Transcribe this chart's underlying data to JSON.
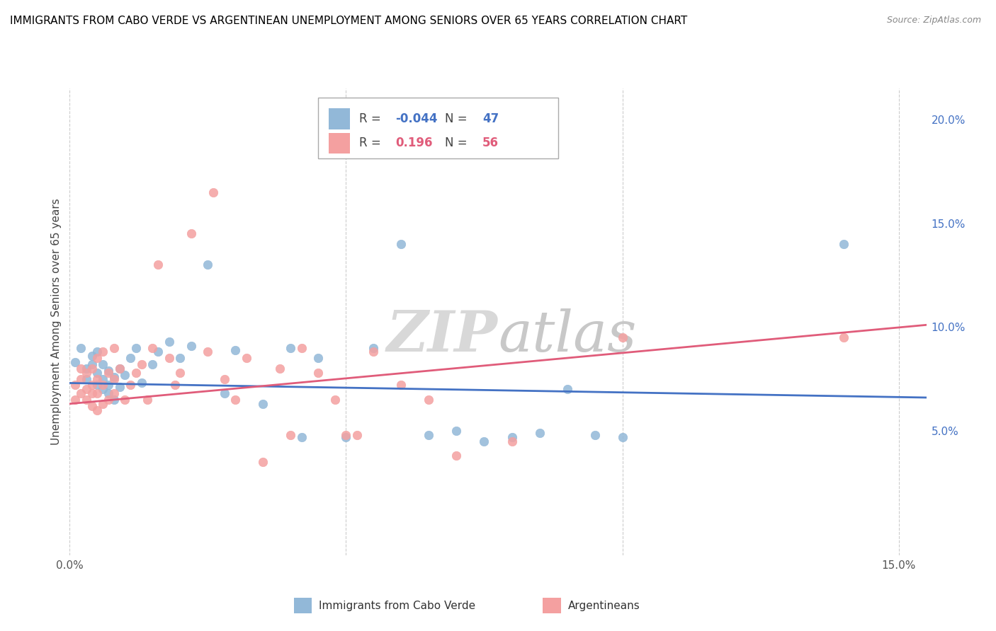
{
  "title": "IMMIGRANTS FROM CABO VERDE VS ARGENTINEAN UNEMPLOYMENT AMONG SENIORS OVER 65 YEARS CORRELATION CHART",
  "source": "Source: ZipAtlas.com",
  "ylabel": "Unemployment Among Seniors over 65 years",
  "xlim": [
    0.0,
    0.155
  ],
  "ylim": [
    -0.01,
    0.215
  ],
  "blue_color": "#92b8d8",
  "pink_color": "#f4a0a0",
  "blue_line_color": "#4472c4",
  "pink_line_color": "#e05c7a",
  "right_tick_color": "#4472c4",
  "watermark_color": "#e0e0e0",
  "blue_scatter": [
    [
      0.001,
      0.083
    ],
    [
      0.002,
      0.09
    ],
    [
      0.003,
      0.075
    ],
    [
      0.003,
      0.08
    ],
    [
      0.004,
      0.082
    ],
    [
      0.004,
      0.086
    ],
    [
      0.005,
      0.072
    ],
    [
      0.005,
      0.078
    ],
    [
      0.005,
      0.088
    ],
    [
      0.006,
      0.07
    ],
    [
      0.006,
      0.075
    ],
    [
      0.006,
      0.082
    ],
    [
      0.007,
      0.068
    ],
    [
      0.007,
      0.072
    ],
    [
      0.007,
      0.079
    ],
    [
      0.008,
      0.065
    ],
    [
      0.008,
      0.076
    ],
    [
      0.009,
      0.071
    ],
    [
      0.009,
      0.08
    ],
    [
      0.01,
      0.077
    ],
    [
      0.011,
      0.085
    ],
    [
      0.012,
      0.09
    ],
    [
      0.013,
      0.073
    ],
    [
      0.015,
      0.082
    ],
    [
      0.016,
      0.088
    ],
    [
      0.018,
      0.093
    ],
    [
      0.02,
      0.085
    ],
    [
      0.022,
      0.091
    ],
    [
      0.025,
      0.13
    ],
    [
      0.028,
      0.068
    ],
    [
      0.03,
      0.089
    ],
    [
      0.035,
      0.063
    ],
    [
      0.04,
      0.09
    ],
    [
      0.042,
      0.047
    ],
    [
      0.045,
      0.085
    ],
    [
      0.05,
      0.047
    ],
    [
      0.055,
      0.09
    ],
    [
      0.06,
      0.14
    ],
    [
      0.065,
      0.048
    ],
    [
      0.07,
      0.05
    ],
    [
      0.075,
      0.045
    ],
    [
      0.08,
      0.047
    ],
    [
      0.085,
      0.049
    ],
    [
      0.09,
      0.07
    ],
    [
      0.095,
      0.048
    ],
    [
      0.1,
      0.047
    ],
    [
      0.14,
      0.14
    ]
  ],
  "pink_scatter": [
    [
      0.001,
      0.065
    ],
    [
      0.001,
      0.072
    ],
    [
      0.002,
      0.068
    ],
    [
      0.002,
      0.075
    ],
    [
      0.002,
      0.08
    ],
    [
      0.003,
      0.065
    ],
    [
      0.003,
      0.07
    ],
    [
      0.003,
      0.078
    ],
    [
      0.004,
      0.062
    ],
    [
      0.004,
      0.068
    ],
    [
      0.004,
      0.072
    ],
    [
      0.004,
      0.08
    ],
    [
      0.005,
      0.06
    ],
    [
      0.005,
      0.068
    ],
    [
      0.005,
      0.075
    ],
    [
      0.005,
      0.085
    ],
    [
      0.006,
      0.063
    ],
    [
      0.006,
      0.072
    ],
    [
      0.006,
      0.088
    ],
    [
      0.007,
      0.065
    ],
    [
      0.007,
      0.078
    ],
    [
      0.008,
      0.068
    ],
    [
      0.008,
      0.075
    ],
    [
      0.008,
      0.09
    ],
    [
      0.009,
      0.08
    ],
    [
      0.01,
      0.065
    ],
    [
      0.011,
      0.072
    ],
    [
      0.012,
      0.078
    ],
    [
      0.013,
      0.082
    ],
    [
      0.014,
      0.065
    ],
    [
      0.015,
      0.09
    ],
    [
      0.016,
      0.13
    ],
    [
      0.018,
      0.085
    ],
    [
      0.019,
      0.072
    ],
    [
      0.02,
      0.078
    ],
    [
      0.022,
      0.145
    ],
    [
      0.025,
      0.088
    ],
    [
      0.026,
      0.165
    ],
    [
      0.028,
      0.075
    ],
    [
      0.03,
      0.065
    ],
    [
      0.032,
      0.085
    ],
    [
      0.035,
      0.035
    ],
    [
      0.038,
      0.08
    ],
    [
      0.04,
      0.048
    ],
    [
      0.042,
      0.09
    ],
    [
      0.045,
      0.078
    ],
    [
      0.048,
      0.065
    ],
    [
      0.05,
      0.048
    ],
    [
      0.052,
      0.048
    ],
    [
      0.055,
      0.088
    ],
    [
      0.06,
      0.072
    ],
    [
      0.065,
      0.065
    ],
    [
      0.07,
      0.038
    ],
    [
      0.08,
      0.045
    ],
    [
      0.1,
      0.095
    ],
    [
      0.14,
      0.095
    ]
  ],
  "blue_line_x": [
    0.0,
    0.155
  ],
  "blue_line_y": [
    0.073,
    0.066
  ],
  "pink_line_x": [
    0.0,
    0.155
  ],
  "pink_line_y": [
    0.063,
    0.101
  ]
}
